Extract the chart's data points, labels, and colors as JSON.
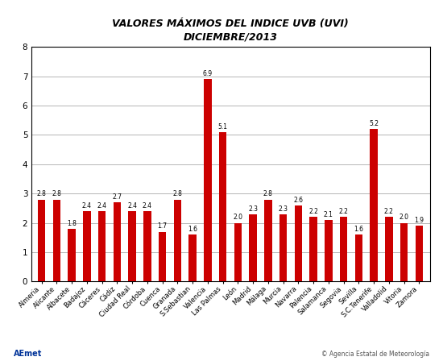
{
  "title_line1": "VALORES MÁXIMOS DEL INDICE UVB (UVI)",
  "title_line2": "DICIEMBRE/2013",
  "categories": [
    "Almeria",
    "Alicante",
    "Albacete",
    "Badajoz",
    "Cáceres",
    "Cádiz",
    "Ciudad Real",
    "Córdoba",
    "Cuenca",
    "Granada",
    "S.Sebastian",
    "Valencia",
    "Las Palmas",
    "León",
    "Madrid",
    "Málaga",
    "Murcia",
    "Navarra",
    "Palencia",
    "Salamanca",
    "Segovia",
    "Sevilla",
    "S.C.Tenerife",
    "Valladolid",
    "Vitoria",
    "Zamora"
  ],
  "values": [
    2.8,
    2.8,
    1.8,
    2.4,
    2.4,
    2.7,
    2.4,
    2.4,
    1.7,
    2.8,
    1.6,
    6.9,
    5.1,
    2.0,
    2.3,
    2.8,
    2.3,
    2.6,
    2.2,
    2.1,
    2.2,
    1.6,
    5.2,
    2.2,
    2.0,
    1.9
  ],
  "bar_color": "#cc0000",
  "ylim": [
    0,
    8
  ],
  "yticks": [
    0,
    1,
    2,
    3,
    4,
    5,
    6,
    7,
    8
  ],
  "grid_color": "#aaaaaa",
  "bg_color": "#ffffff",
  "plot_bg_color": "#ffffff",
  "label_fontsize": 6.0,
  "value_fontsize": 5.5,
  "title_fontsize": 9.0,
  "ytick_fontsize": 7.5,
  "copyright_text": "© Agencia Estatal de Meteorología",
  "label_rotation": 45,
  "bar_width": 0.5
}
